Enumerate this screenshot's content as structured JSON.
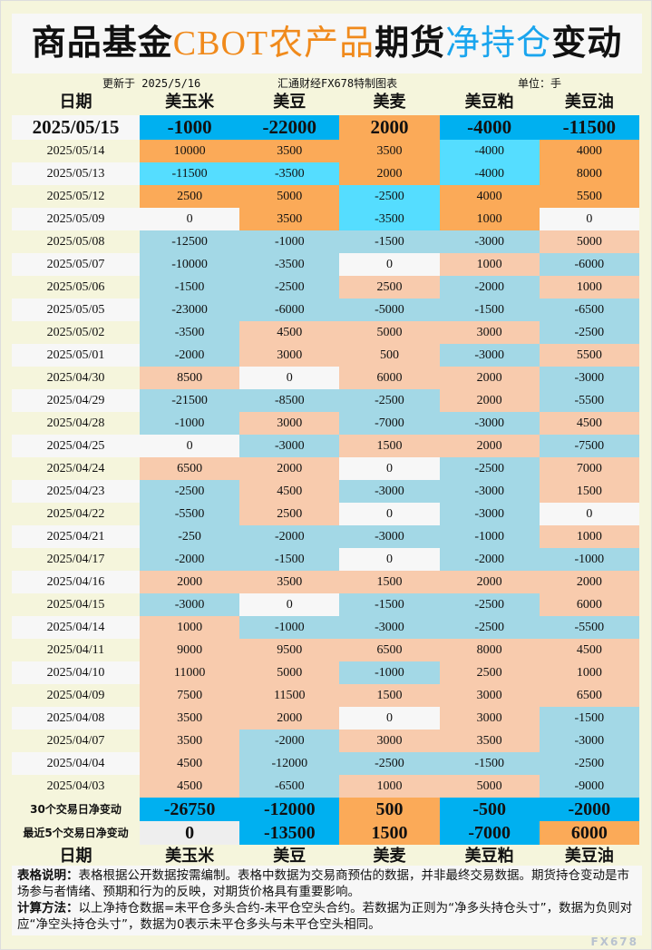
{
  "title": {
    "part1": "商品基金",
    "part2": "CBOT农产品",
    "part3": "期货",
    "part4": "净持仓",
    "part5": "变动"
  },
  "subheader": {
    "updated": "更新于 2025/5/16",
    "source": "汇通财经FX678特制图表",
    "unit": "单位：手"
  },
  "columns": [
    "日期",
    "美玉米",
    "美豆",
    "美麦",
    "美豆粕",
    "美豆油"
  ],
  "colors": {
    "strong_neg": "#00b0f0",
    "strong_pos": "#fbaa58",
    "recent_neg": "#55ddff",
    "pastel_neg": "#a3d8e6",
    "pastel_pos": "#f8cbad",
    "zero": "#f7f7f7",
    "cream": "#f5f5dc"
  },
  "rows": [
    {
      "date": "2025/05/15",
      "values": [
        -1000,
        -22000,
        2000,
        -4000,
        -11500
      ]
    },
    {
      "date": "2025/05/14",
      "values": [
        10000,
        3500,
        3500,
        -4000,
        4000
      ]
    },
    {
      "date": "2025/05/13",
      "values": [
        -11500,
        -3500,
        2000,
        -4000,
        8000
      ]
    },
    {
      "date": "2025/05/12",
      "values": [
        2500,
        5000,
        -2500,
        4000,
        5500
      ]
    },
    {
      "date": "2025/05/09",
      "values": [
        0,
        3500,
        -3500,
        1000,
        0
      ]
    },
    {
      "date": "2025/05/08",
      "values": [
        -12500,
        -1000,
        -1500,
        -3000,
        5000
      ]
    },
    {
      "date": "2025/05/07",
      "values": [
        -10000,
        -3500,
        0,
        1000,
        -6000
      ]
    },
    {
      "date": "2025/05/06",
      "values": [
        -1500,
        -2500,
        2500,
        -2000,
        1000
      ]
    },
    {
      "date": "2025/05/05",
      "values": [
        -23000,
        -6000,
        -5000,
        -1500,
        -6500
      ]
    },
    {
      "date": "2025/05/02",
      "values": [
        -3500,
        4500,
        5000,
        3000,
        -2500
      ]
    },
    {
      "date": "2025/05/01",
      "values": [
        -2000,
        3000,
        500,
        -3000,
        5500
      ]
    },
    {
      "date": "2025/04/30",
      "values": [
        8500,
        0,
        6000,
        2000,
        -3000
      ]
    },
    {
      "date": "2025/04/29",
      "values": [
        -21500,
        -8500,
        -2500,
        2000,
        -5500
      ]
    },
    {
      "date": "2025/04/28",
      "values": [
        -1000,
        3000,
        -7000,
        -3000,
        4500
      ]
    },
    {
      "date": "2025/04/25",
      "values": [
        0,
        -3000,
        1500,
        2000,
        -7500
      ]
    },
    {
      "date": "2025/04/24",
      "values": [
        6500,
        2000,
        0,
        -2500,
        7000
      ]
    },
    {
      "date": "2025/04/23",
      "values": [
        -2500,
        4500,
        -3000,
        -3000,
        1500
      ]
    },
    {
      "date": "2025/04/22",
      "values": [
        -5500,
        2500,
        0,
        -3000,
        0
      ]
    },
    {
      "date": "2025/04/21",
      "values": [
        -250,
        -2000,
        -3000,
        -1000,
        1000
      ]
    },
    {
      "date": "2025/04/17",
      "values": [
        -2000,
        -1500,
        0,
        -2000,
        -1000
      ]
    },
    {
      "date": "2025/04/16",
      "values": [
        2000,
        3500,
        1500,
        2000,
        2000
      ]
    },
    {
      "date": "2025/04/15",
      "values": [
        -3000,
        0,
        -1500,
        -2500,
        6000
      ]
    },
    {
      "date": "2025/04/14",
      "values": [
        1000,
        -1000,
        -3000,
        -2500,
        -5500
      ]
    },
    {
      "date": "2025/04/11",
      "values": [
        9000,
        9500,
        6500,
        8000,
        4500
      ]
    },
    {
      "date": "2025/04/10",
      "values": [
        11000,
        5000,
        -1000,
        2500,
        1000
      ]
    },
    {
      "date": "2025/04/09",
      "values": [
        7500,
        11500,
        1500,
        3000,
        6500
      ]
    },
    {
      "date": "2025/04/08",
      "values": [
        3500,
        2000,
        0,
        3000,
        -1500
      ]
    },
    {
      "date": "2025/04/07",
      "values": [
        3500,
        -2000,
        3000,
        3500,
        -3000
      ]
    },
    {
      "date": "2025/04/04",
      "values": [
        4500,
        -12000,
        -2500,
        -1500,
        -2500
      ]
    },
    {
      "date": "2025/04/03",
      "values": [
        4500,
        -6500,
        1000,
        5000,
        -9000
      ]
    }
  ],
  "summary": [
    {
      "label": "30个交易日净变动",
      "values": [
        -26750,
        -12000,
        500,
        -500,
        -2000
      ]
    },
    {
      "label": "最近5个交易日净变动",
      "values": [
        0,
        -13500,
        1500,
        -7000,
        6000
      ]
    }
  ],
  "notes": {
    "label1": "表格说明：",
    "text1": "表格根据公开数据按需编制。表格中数据为交易商预估的数据，并非最终交易数据。期货持仓变动是市场参与者情绪、预期和行为的反映，对期货价格具有重要影响。",
    "label2": "计算方法：",
    "text2": "以上净持仓数据=未平仓多头合约-未平仓空头合约。若数据为正则为“净多头持仓头寸”，数据为负则对应“净空头持仓头寸”，数据为0表示未平仓多头与未平仓空头相同。"
  },
  "watermark": "FX678"
}
